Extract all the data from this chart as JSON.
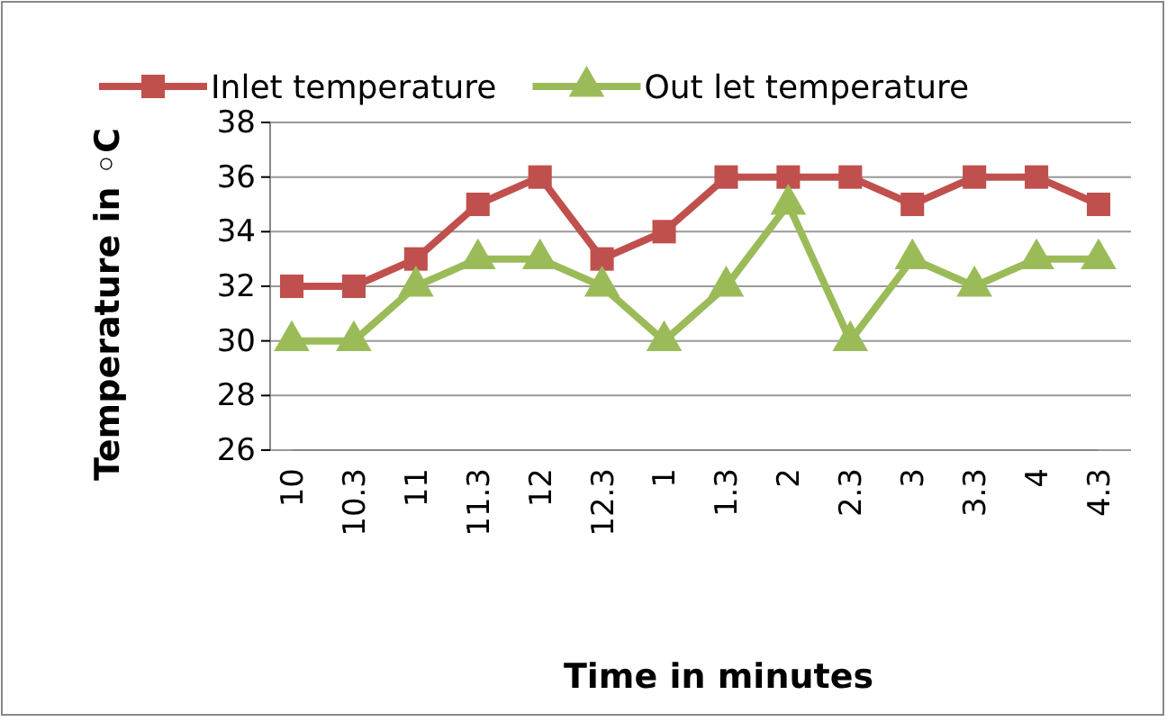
{
  "chart_data": {
    "type": "line",
    "xlabel": "Time in minutes",
    "ylabel": "Temperature in ◦C",
    "categories": [
      "10",
      "10.3",
      "11",
      "11.3",
      "12",
      "12.3",
      "1",
      "1.3",
      "2",
      "2.3",
      "3",
      "3.3",
      "4",
      "4.3"
    ],
    "series": [
      {
        "name": "Inlet temperature",
        "color": "#c0504d",
        "marker": "square",
        "values": [
          32,
          32,
          33,
          35,
          36,
          33,
          34,
          36,
          36,
          36,
          35,
          36,
          36,
          35
        ]
      },
      {
        "name": "Out let temperature",
        "color": "#9bbb59",
        "marker": "triangle",
        "values": [
          30,
          30,
          32,
          33,
          33,
          32,
          30,
          32,
          35,
          30,
          33,
          32,
          33,
          33
        ]
      }
    ],
    "ylim": [
      26,
      38
    ],
    "yticks": [
      26,
      28,
      30,
      32,
      34,
      36,
      38
    ],
    "grid": "y",
    "legend": "top",
    "line_style": "solid"
  }
}
